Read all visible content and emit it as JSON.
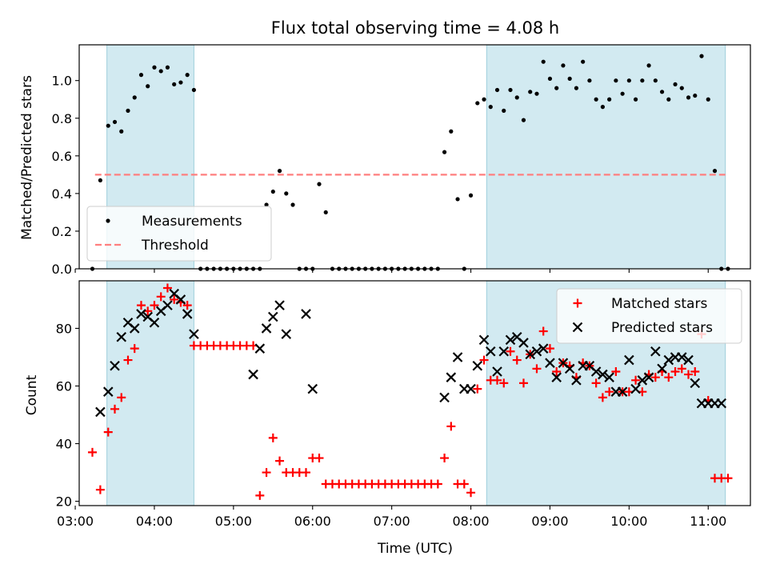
{
  "chart_data": [
    {
      "type": "scatter",
      "title": "Flux total observing time = 4.08 h",
      "ylabel": "Matched/Predicted stars",
      "xlabel": "",
      "ylim": [
        0,
        1.19
      ],
      "xlim": [
        "03:03",
        "11:32"
      ],
      "xticks": [
        "03:00",
        "04:00",
        "05:00",
        "06:00",
        "07:00",
        "08:00",
        "09:00",
        "10:00",
        "11:00"
      ],
      "yticks": [
        "0.0",
        "0.2",
        "0.4",
        "0.6",
        "0.8",
        "1.0"
      ],
      "legend_position": "lower-left",
      "shaded_intervals": [
        [
          "03:24",
          "04:30"
        ],
        [
          "08:12",
          "11:13"
        ]
      ],
      "shade_color": "#add8e6",
      "threshold": {
        "name": "Threshold",
        "value": 0.5,
        "x": [
          "03:15",
          "11:13"
        ],
        "color": "#ff7f7f",
        "style": "dashed"
      },
      "series": [
        {
          "name": "Measurements",
          "color": "#000000",
          "marker": "dot",
          "x": [
            "03:13",
            "03:19",
            "03:25",
            "03:30",
            "03:35",
            "03:40",
            "03:45",
            "03:50",
            "03:55",
            "04:00",
            "04:05",
            "04:10",
            "04:15",
            "04:20",
            "04:25",
            "04:30",
            "04:35",
            "04:40",
            "04:45",
            "04:50",
            "04:55",
            "05:00",
            "05:05",
            "05:10",
            "05:15",
            "05:20",
            "05:25",
            "05:30",
            "05:35",
            "05:40",
            "05:45",
            "05:50",
            "05:55",
            "06:00",
            "06:05",
            "06:10",
            "06:15",
            "06:20",
            "06:25",
            "06:30",
            "06:35",
            "06:40",
            "06:45",
            "06:50",
            "06:55",
            "07:00",
            "07:05",
            "07:10",
            "07:15",
            "07:20",
            "07:25",
            "07:30",
            "07:35",
            "07:40",
            "07:45",
            "07:50",
            "07:55",
            "08:00",
            "08:05",
            "08:10",
            "08:15",
            "08:20",
            "08:25",
            "08:30",
            "08:35",
            "08:40",
            "08:45",
            "08:50",
            "08:55",
            "09:00",
            "09:05",
            "09:10",
            "09:15",
            "09:20",
            "09:25",
            "09:30",
            "09:35",
            "09:40",
            "09:45",
            "09:50",
            "09:55",
            "10:00",
            "10:05",
            "10:10",
            "10:15",
            "10:20",
            "10:25",
            "10:30",
            "10:35",
            "10:40",
            "10:45",
            "10:50",
            "10:55",
            "11:00",
            "11:05",
            "11:10",
            "11:15"
          ],
          "y": [
            0.0,
            0.47,
            0.76,
            0.78,
            0.73,
            0.84,
            0.91,
            1.03,
            0.97,
            1.07,
            1.05,
            1.07,
            0.98,
            0.99,
            1.03,
            0.95,
            0.0,
            0.0,
            0.0,
            0.0,
            0.0,
            0.0,
            0.0,
            0.0,
            0.0,
            0.0,
            0.34,
            0.41,
            0.52,
            0.4,
            0.34,
            0.0,
            0.0,
            0.0,
            0.45,
            0.3,
            0.0,
            0.0,
            0.0,
            0.0,
            0.0,
            0.0,
            0.0,
            0.0,
            0.0,
            0.0,
            0.0,
            0.0,
            0.0,
            0.0,
            0.0,
            0.0,
            0.0,
            0.62,
            0.73,
            0.37,
            0.0,
            0.39,
            0.88,
            0.9,
            0.86,
            0.95,
            0.84,
            0.95,
            0.91,
            0.79,
            0.94,
            0.93,
            1.1,
            1.01,
            0.96,
            1.08,
            1.01,
            0.96,
            1.1,
            1.0,
            0.9,
            0.86,
            0.9,
            1.0,
            0.93,
            1.0,
            0.9,
            1.0,
            1.08,
            1.0,
            0.94,
            0.9,
            0.98,
            0.96,
            0.91,
            0.92,
            1.13,
            0.9,
            0.52,
            0.0,
            0.0
          ]
        }
      ]
    },
    {
      "type": "scatter",
      "title": "",
      "ylabel": "Count",
      "xlabel": "Time (UTC)",
      "ylim": [
        18.5,
        96.5
      ],
      "xlim": [
        "03:03",
        "11:32"
      ],
      "xticks": [
        "03:00",
        "04:00",
        "05:00",
        "06:00",
        "07:00",
        "08:00",
        "09:00",
        "10:00",
        "11:00"
      ],
      "yticks": [
        "20",
        "40",
        "60",
        "80"
      ],
      "legend_position": "upper-right",
      "shaded_intervals": [
        [
          "03:24",
          "04:30"
        ],
        [
          "08:12",
          "11:13"
        ]
      ],
      "shade_color": "#add8e6",
      "series": [
        {
          "name": "Matched stars",
          "color": "#ff0000",
          "marker": "plus",
          "x": [
            "03:13",
            "03:19",
            "03:25",
            "03:30",
            "03:35",
            "03:40",
            "03:45",
            "03:50",
            "03:55",
            "04:00",
            "04:05",
            "04:10",
            "04:15",
            "04:20",
            "04:25",
            "04:30",
            "04:35",
            "04:40",
            "04:45",
            "04:50",
            "04:55",
            "05:00",
            "05:05",
            "05:10",
            "05:15",
            "05:20",
            "05:25",
            "05:30",
            "05:35",
            "05:40",
            "05:45",
            "05:50",
            "05:55",
            "06:00",
            "06:05",
            "06:10",
            "06:15",
            "06:20",
            "06:25",
            "06:30",
            "06:35",
            "06:40",
            "06:45",
            "06:50",
            "06:55",
            "07:00",
            "07:05",
            "07:10",
            "07:15",
            "07:20",
            "07:25",
            "07:30",
            "07:35",
            "07:40",
            "07:45",
            "07:50",
            "07:55",
            "08:00",
            "08:05",
            "08:10",
            "08:15",
            "08:20",
            "08:25",
            "08:30",
            "08:35",
            "08:40",
            "08:45",
            "08:50",
            "08:55",
            "09:00",
            "09:05",
            "09:10",
            "09:15",
            "09:20",
            "09:25",
            "09:30",
            "09:35",
            "09:40",
            "09:45",
            "09:50",
            "09:55",
            "10:00",
            "10:05",
            "10:10",
            "10:15",
            "10:20",
            "10:25",
            "10:30",
            "10:35",
            "10:40",
            "10:45",
            "10:50",
            "10:55",
            "11:00",
            "11:05",
            "11:10",
            "11:15"
          ],
          "y": [
            37,
            24,
            44,
            52,
            56,
            69,
            73,
            88,
            86,
            88,
            91,
            94,
            90,
            89,
            88,
            74,
            74,
            74,
            74,
            74,
            74,
            74,
            74,
            74,
            74,
            22,
            30,
            42,
            34,
            30,
            30,
            30,
            30,
            35,
            35,
            26,
            26,
            26,
            26,
            26,
            26,
            26,
            26,
            26,
            26,
            26,
            26,
            26,
            26,
            26,
            26,
            26,
            26,
            35,
            46,
            26,
            26,
            23,
            59,
            69,
            62,
            62,
            61,
            72,
            69,
            61,
            71,
            66,
            79,
            73,
            65,
            68,
            67,
            63,
            68,
            67,
            61,
            56,
            58,
            65,
            58,
            58,
            62,
            58,
            64,
            63,
            65,
            63,
            65,
            66,
            64,
            65,
            78,
            55,
            28,
            28,
            28
          ]
        },
        {
          "name": "Predicted stars",
          "color": "#000000",
          "marker": "x",
          "x": [
            "03:19",
            "03:25",
            "03:30",
            "03:35",
            "03:40",
            "03:45",
            "03:50",
            "03:55",
            "04:00",
            "04:05",
            "04:10",
            "04:15",
            "04:20",
            "04:25",
            "04:30",
            "05:15",
            "05:20",
            "05:25",
            "05:30",
            "05:35",
            "05:40",
            "05:55",
            "06:00",
            "07:40",
            "07:45",
            "07:50",
            "07:55",
            "08:00",
            "08:05",
            "08:10",
            "08:15",
            "08:20",
            "08:25",
            "08:30",
            "08:35",
            "08:40",
            "08:45",
            "08:50",
            "08:55",
            "09:00",
            "09:05",
            "09:10",
            "09:15",
            "09:20",
            "09:25",
            "09:30",
            "09:35",
            "09:40",
            "09:45",
            "09:50",
            "09:55",
            "10:00",
            "10:05",
            "10:10",
            "10:15",
            "10:20",
            "10:25",
            "10:30",
            "10:35",
            "10:40",
            "10:45",
            "10:50",
            "10:55",
            "11:00",
            "11:05",
            "11:10"
          ],
          "y": [
            51,
            58,
            67,
            77,
            82,
            80,
            85,
            84,
            82,
            86,
            88,
            92,
            90,
            85,
            78,
            64,
            73,
            80,
            84,
            88,
            78,
            85,
            59,
            56,
            63,
            70,
            59,
            59,
            67,
            76,
            72,
            65,
            72,
            76,
            77,
            75,
            71,
            72,
            73,
            68,
            63,
            68,
            66,
            62,
            67,
            67,
            65,
            64,
            63,
            58,
            58,
            69,
            59,
            62,
            63,
            72,
            66,
            69,
            70,
            70,
            69,
            61,
            54,
            54,
            54,
            54
          ]
        }
      ]
    }
  ],
  "x_axis_label": "Time (UTC)"
}
